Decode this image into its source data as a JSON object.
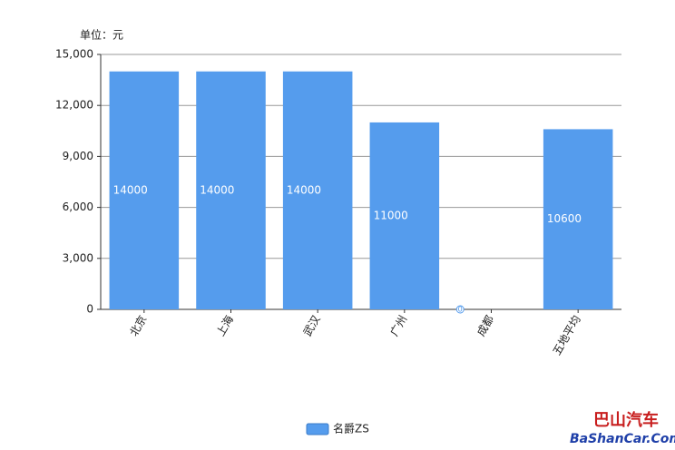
{
  "chart_data": {
    "type": "bar",
    "unit_label": "单位：元",
    "categories": [
      "北京",
      "上海",
      "武汉",
      "广州",
      "成都",
      "五地平均"
    ],
    "series": [
      {
        "name": "名爵ZS",
        "color": "#559ced",
        "values": [
          14000,
          14000,
          14000,
          11000,
          0,
          10600
        ]
      }
    ],
    "ylim": [
      0,
      15000
    ],
    "yticks": [
      0,
      {
        "value": 3000,
        "label": "3,000"
      },
      {
        "value": 6000,
        "label": "6,000"
      },
      {
        "value": 9000,
        "label": "9,000"
      },
      {
        "value": 12000,
        "label": "12,000"
      },
      {
        "value": 15000,
        "label": "15,000"
      }
    ],
    "grid": true,
    "legend": "bottom"
  },
  "watermark": {
    "title": "巴山汽车",
    "site": "BaShanCar.Com"
  }
}
